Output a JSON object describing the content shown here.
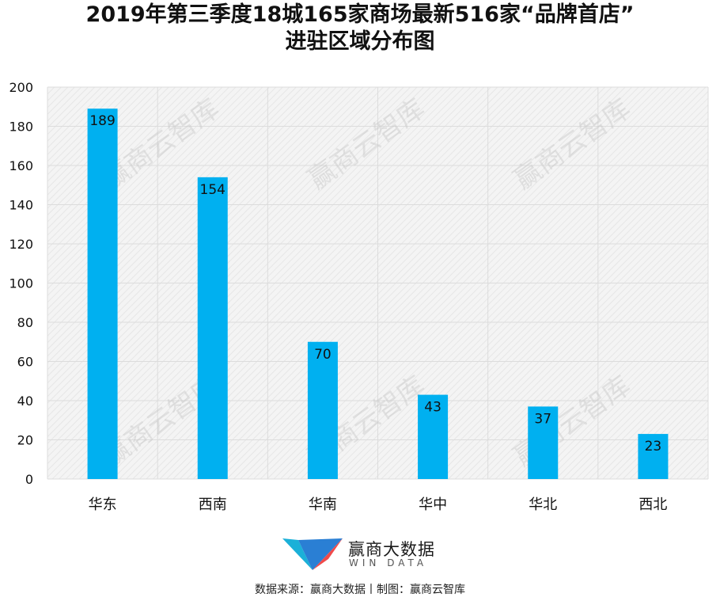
{
  "title_line1": "2019年第三季度18城165家商场最新516家“品牌首店”",
  "title_line2": "进驻区域分布图",
  "watermark": "赢商云智库",
  "logo": {
    "name": "赢商大数据",
    "tagline": "WIN DATA",
    "colors": [
      "#f04a4a",
      "#2a7fd4",
      "#1bb0d8"
    ]
  },
  "source": "数据来源：赢商大数据丨制图：赢商云智库",
  "colors": {
    "bar": "#00b0f0",
    "grid": "#dcdcdc",
    "plot_bg": "#f2f2f2"
  },
  "chart_data": {
    "type": "bar",
    "categories": [
      "华东",
      "西南",
      "华南",
      "华中",
      "华北",
      "西北"
    ],
    "values": [
      189,
      154,
      70,
      43,
      37,
      23
    ],
    "ylim": [
      0,
      200
    ],
    "yticks": [
      0,
      20,
      40,
      60,
      80,
      100,
      120,
      140,
      160,
      180,
      200
    ],
    "grid": true,
    "data_labels": true,
    "xlabel": "",
    "ylabel": ""
  }
}
